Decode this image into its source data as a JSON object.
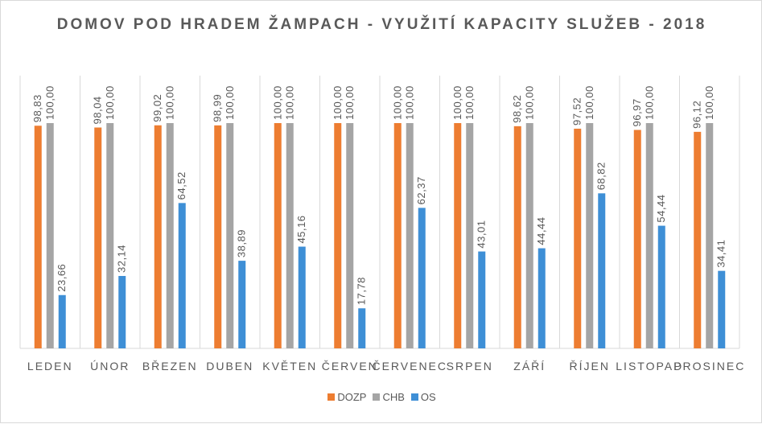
{
  "chart_data": {
    "type": "bar",
    "title": "DOMOV POD HRADEM ŽAMPACH - VYUŽITÍ KAPACITY SLUŽEB - 2018",
    "categories": [
      "LEDEN",
      "ÚNOR",
      "BŘEZEN",
      "DUBEN",
      "KVĚTEN",
      "ČERVEN",
      "ČERVENEC",
      "SRPEN",
      "ZÁŘÍ",
      "ŘÍJEN",
      "LISTOPAD",
      "PROSINEC"
    ],
    "series": [
      {
        "name": "DOZP",
        "color": "#ED7D31",
        "values": [
          98.83,
          98.04,
          99.02,
          98.99,
          100.0,
          100.0,
          100.0,
          100.0,
          98.62,
          97.52,
          96.97,
          96.12
        ],
        "labels": [
          "98,83",
          "98,04",
          "99,02",
          "98,99",
          "100,00",
          "100,00",
          "100,00",
          "100,00",
          "98,62",
          "97,52",
          "96,97",
          "96,12"
        ]
      },
      {
        "name": "CHB",
        "color": "#A5A5A5",
        "values": [
          100.0,
          100.0,
          100.0,
          100.0,
          100.0,
          100.0,
          100.0,
          100.0,
          100.0,
          100.0,
          100.0,
          100.0
        ],
        "labels": [
          "100,00",
          "100,00",
          "100,00",
          "100,00",
          "100,00",
          "100,00",
          "100,00",
          "100,00",
          "100,00",
          "100,00",
          "100,00",
          "100,00"
        ]
      },
      {
        "name": "OS",
        "color": "#3E8FD6",
        "values": [
          23.66,
          32.14,
          64.52,
          38.89,
          45.16,
          17.78,
          62.37,
          43.01,
          44.44,
          68.82,
          54.44,
          34.41
        ],
        "labels": [
          "23,66",
          "32,14",
          "64,52",
          "38,89",
          "45,16",
          "17,78",
          "62,37",
          "43,01",
          "44,44",
          "68,82",
          "54,44",
          "34,41"
        ]
      }
    ],
    "ylim": [
      0,
      100
    ],
    "grid": "vertical category separators",
    "legend_position": "bottom"
  }
}
